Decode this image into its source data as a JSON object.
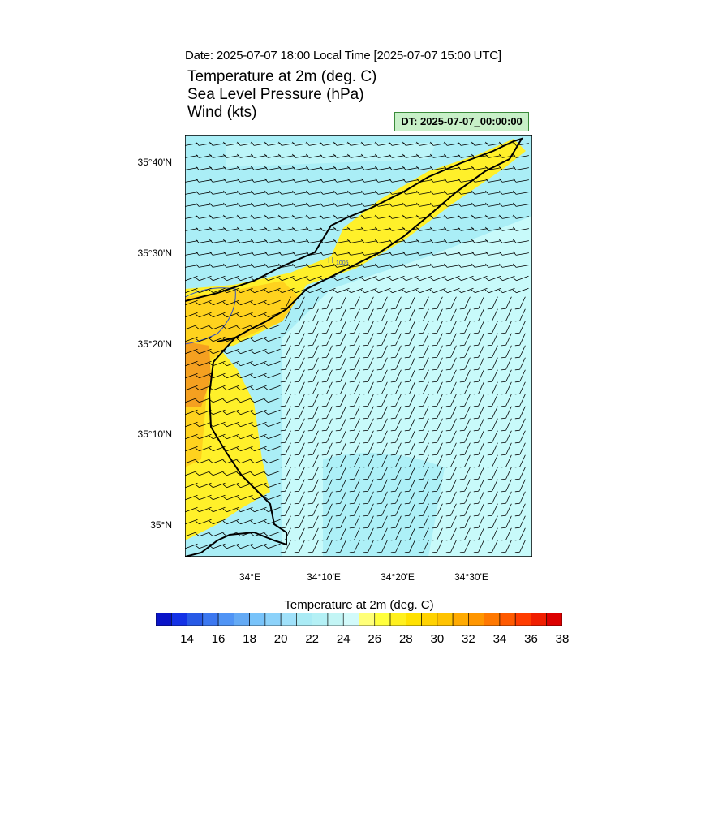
{
  "header": {
    "date_line": "Date: 2025-07-07  18:00 Local Time [2025-07-07  15:00 UTC]",
    "field_temperature": "Temperature at 2m   (deg. C)",
    "field_pressure": "Sea Level Pressure   (hPa)",
    "field_wind": "Wind   (kts)",
    "dt_label": "DT: 2025-07-07_00:00:00"
  },
  "map": {
    "lat_labels": [
      "35°40'N",
      "35°30'N",
      "35°20'N",
      "35°10'N",
      "35°N"
    ],
    "lon_labels": [
      "34°E",
      "34°10'E",
      "34°20'E",
      "34°30'E"
    ],
    "pressure_marker": {
      "symbol": "H",
      "value": "1005"
    },
    "colors": {
      "cool_fill": "#aaeef6",
      "pale_fill": "#c8fafa",
      "yellow_fill": "#fff02a",
      "gold_fill": "#ffd21e",
      "orange_fill": "#f5a020",
      "coastline": "#000000",
      "isobar": "#3050c8"
    }
  },
  "colorbar": {
    "title": "Temperature at 2m  (deg. C)",
    "labels": [
      "14",
      "16",
      "18",
      "20",
      "22",
      "24",
      "26",
      "28",
      "30",
      "32",
      "34",
      "36",
      "38"
    ],
    "colors": [
      "#0a14c8",
      "#1432e6",
      "#285ae6",
      "#3c78f0",
      "#5094f5",
      "#64aaf5",
      "#78c3fa",
      "#8cd2fa",
      "#a0e1fa",
      "#aaebf5",
      "#b4f0f5",
      "#c3f5f5",
      "#d2fafa",
      "#ffff78",
      "#ffff3c",
      "#fff01e",
      "#ffe100",
      "#ffd200",
      "#ffc300",
      "#ffaa00",
      "#ff9600",
      "#ff7800",
      "#ff5a00",
      "#ff3c00",
      "#f01e00",
      "#dc0000"
    ]
  }
}
